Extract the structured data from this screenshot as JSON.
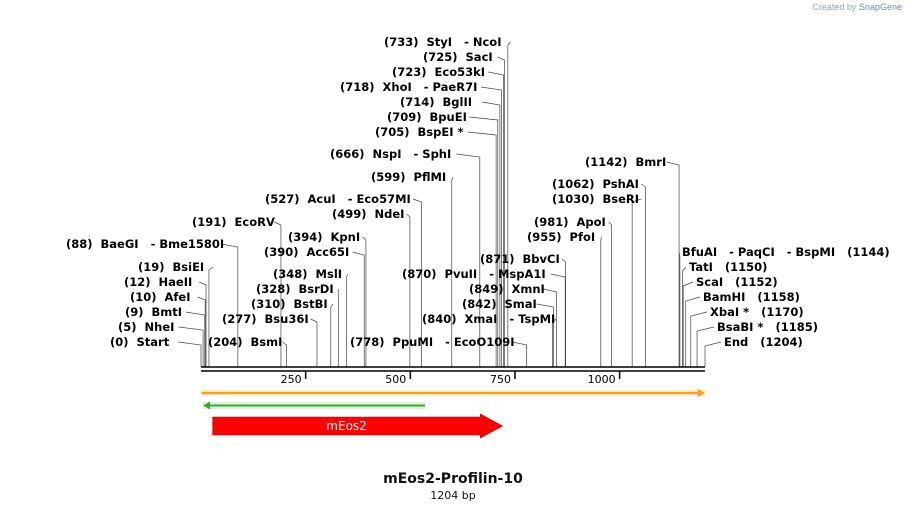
{
  "credit": {
    "prefix": "Created by",
    "brand": "SnapGene"
  },
  "construct": {
    "name": "mEos2-Profilin-10",
    "length_label": "1204 bp",
    "length": 1204
  },
  "axis": {
    "ticks": [
      250,
      500,
      750,
      1000
    ]
  },
  "features": [
    {
      "name": "orange-backbone",
      "label": "",
      "start": 1,
      "end": 1204,
      "color": "#f4a21a",
      "direction": "forward"
    },
    {
      "name": "green-feature",
      "label": "",
      "start": 5,
      "end": 535,
      "color": "#3aa53a",
      "direction": "reverse"
    },
    {
      "name": "meos2",
      "label": "mEos2",
      "start": 28,
      "end": 720,
      "color": "#ff0000",
      "direction": "forward"
    }
  ],
  "sites": [
    {
      "text": "(733)  StyI   - NcoI",
      "pos": 733
    },
    {
      "text": "(725)  SacI",
      "pos": 725
    },
    {
      "text": "(723)  Eco53kI",
      "pos": 723
    },
    {
      "text": "(718)  XhoI   - PaeR7I",
      "pos": 718
    },
    {
      "text": "(714)  BglII",
      "pos": 714
    },
    {
      "text": "(709)  BpuEI",
      "pos": 709
    },
    {
      "text": "(705)  BspEI *",
      "pos": 705
    },
    {
      "text": "(666)  NspI   - SphI",
      "pos": 666
    },
    {
      "text": "(599)  PflMI",
      "pos": 599
    },
    {
      "text": "(527)  AcuI   - Eco57MI",
      "pos": 527
    },
    {
      "text": "(499)  NdeI",
      "pos": 499
    },
    {
      "text": "(191)  EcoRV",
      "pos": 191
    },
    {
      "text": "(394)  KpnI",
      "pos": 394
    },
    {
      "text": "(88)  BaeGI   - Bme1580I",
      "pos": 88
    },
    {
      "text": "(390)  Acc65I",
      "pos": 390
    },
    {
      "text": "(19)  BsiEI",
      "pos": 19
    },
    {
      "text": "(348)  MslI",
      "pos": 348
    },
    {
      "text": "(12)  HaeII",
      "pos": 12
    },
    {
      "text": "(328)  BsrDI",
      "pos": 328
    },
    {
      "text": "(10)  AfeI",
      "pos": 10
    },
    {
      "text": "(310)  BstBI",
      "pos": 310
    },
    {
      "text": "(9)  BmtI",
      "pos": 9
    },
    {
      "text": "(277)  Bsu36I",
      "pos": 277
    },
    {
      "text": "(5)  NheI",
      "pos": 5
    },
    {
      "text": "(0)  Start",
      "pos": 0
    },
    {
      "text": "(204)  BsmI",
      "pos": 204
    },
    {
      "text": "(778)  PpuMI   - EcoO109I",
      "pos": 778
    },
    {
      "text": "(870)  PvuII   - MspA1I",
      "pos": 870
    },
    {
      "text": "(871)  BbvCI",
      "pos": 871
    },
    {
      "text": "(849)  XmnI",
      "pos": 849
    },
    {
      "text": "(842)  SmaI",
      "pos": 842
    },
    {
      "text": "(840)  XmaI   - TspMI",
      "pos": 840
    },
    {
      "text": "(1142)  BmrI",
      "pos": 1142
    },
    {
      "text": "(1062)  PshAI",
      "pos": 1062
    },
    {
      "text": "(1030)  BseRI",
      "pos": 1030
    },
    {
      "text": "(981)  ApoI",
      "pos": 981
    },
    {
      "text": "(955)  PfoI",
      "pos": 955
    },
    {
      "text": "BfuAI   - PaqCI   - BspMI   (1144)",
      "pos": 1144
    },
    {
      "text": "TatI   (1150)",
      "pos": 1150
    },
    {
      "text": "ScaI   (1152)",
      "pos": 1152
    },
    {
      "text": "BamHI   (1158)",
      "pos": 1158
    },
    {
      "text": "XbaI *   (1170)",
      "pos": 1170
    },
    {
      "text": "BsaBI *   (1185)",
      "pos": 1185
    },
    {
      "text": "End   (1204)",
      "pos": 1204
    }
  ]
}
